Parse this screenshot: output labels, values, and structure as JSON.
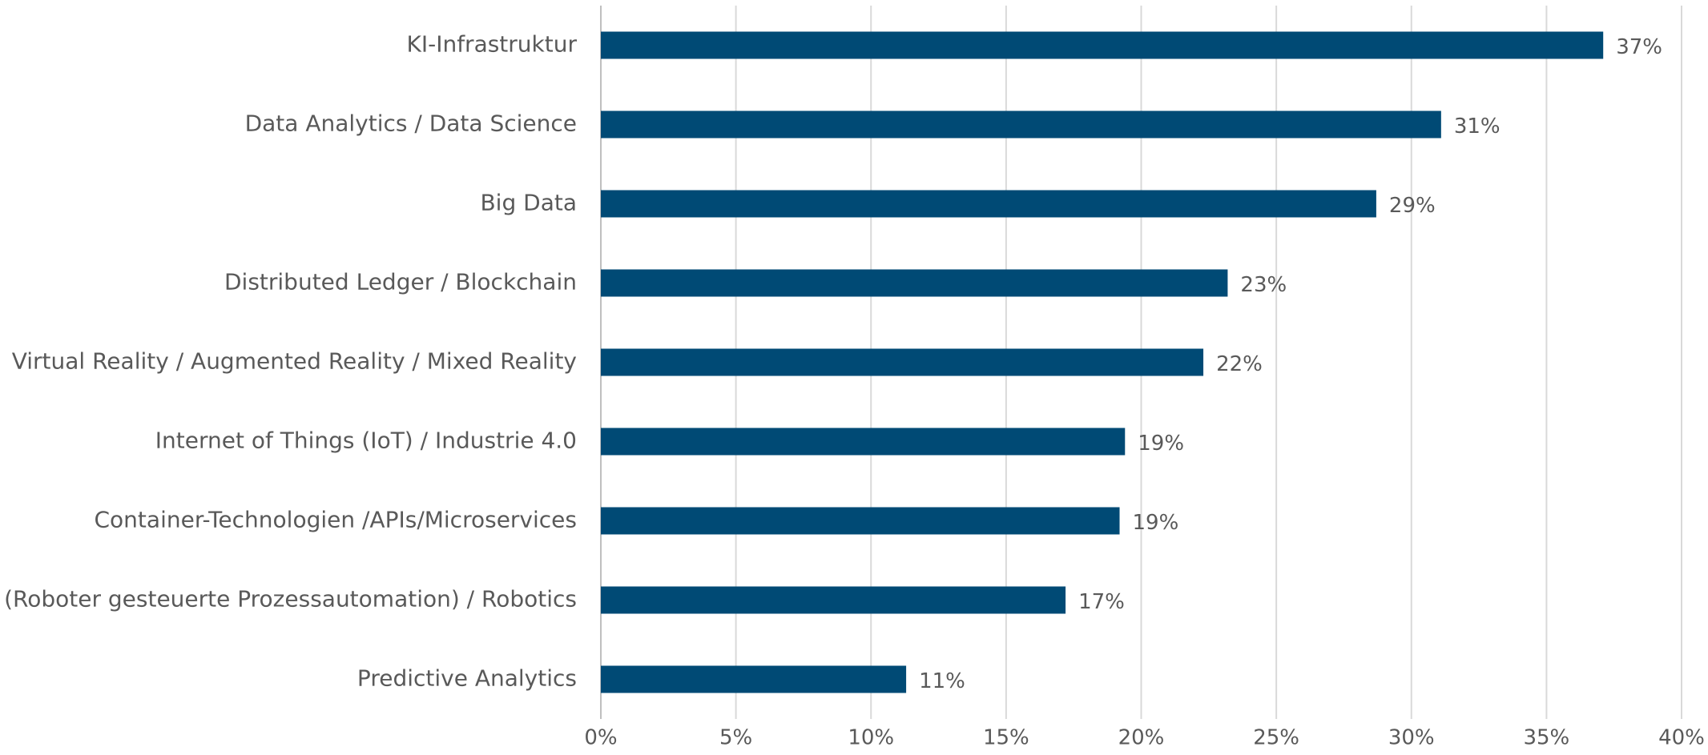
{
  "chart_data": {
    "type": "bar",
    "orientation": "horizontal",
    "categories": [
      "KI-Infrastruktur",
      "Data Analytics / Data Science",
      "Big Data",
      "Distributed Ledger / Blockchain",
      "Virtual Reality / Augmented Reality / Mixed Reality",
      "Internet of Things (IoT) / Industrie 4.0",
      "Container-Technologien /APIs/Microservices",
      "RPA (Roboter gesteuerte Prozessautomation) / Robotics",
      "Predictive Analytics"
    ],
    "values": [
      37.1,
      31.1,
      28.7,
      23.2,
      22.3,
      19.4,
      19.2,
      17.2,
      11.3
    ],
    "value_labels": [
      "37%",
      "31%",
      "29%",
      "23%",
      "22%",
      "19%",
      "19%",
      "17%",
      "11%"
    ],
    "color": "#004a75",
    "xlim": [
      0,
      40
    ],
    "xticks": [
      {
        "value": 0,
        "label": "0%"
      },
      {
        "value": 5,
        "label": "5%"
      },
      {
        "value": 10,
        "label": "10%"
      },
      {
        "value": 15,
        "label": "15%"
      },
      {
        "value": 20,
        "label": "20%"
      },
      {
        "value": 25,
        "label": "25%"
      },
      {
        "value": 30,
        "label": "30%"
      },
      {
        "value": 35,
        "label": "35%"
      },
      {
        "value": 40,
        "label": "40%"
      }
    ],
    "grid": true
  }
}
